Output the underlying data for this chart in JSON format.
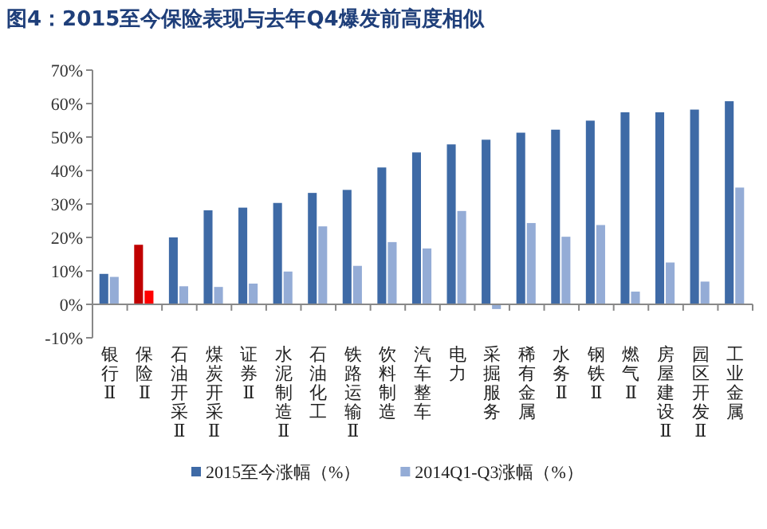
{
  "chart_data": {
    "type": "bar",
    "title": "图4：2015至今保险表现与去年Q4爆发前高度相似",
    "categories": [
      "银行Ⅱ",
      "保险Ⅱ",
      "石油开采Ⅱ",
      "煤炭开采Ⅱ",
      "证券Ⅱ",
      "水泥制造Ⅱ",
      "石油化工",
      "铁路运输Ⅱ",
      "饮料制造",
      "汽车整车",
      "电力",
      "采掘服务",
      "稀有金属",
      "水务Ⅱ",
      "钢铁Ⅱ",
      "燃气Ⅱ",
      "房屋建设Ⅱ",
      "园区开发Ⅱ",
      "工业金属"
    ],
    "series": [
      {
        "name": "2015至今涨幅（%）",
        "color": "#3e6aa6",
        "colors": [
          "#3e6aa6",
          "#c00000",
          "#3e6aa6",
          "#3e6aa6",
          "#3e6aa6",
          "#3e6aa6",
          "#3e6aa6",
          "#3e6aa6",
          "#3e6aa6",
          "#3e6aa6",
          "#3e6aa6",
          "#3e6aa6",
          "#3e6aa6",
          "#3e6aa6",
          "#3e6aa6",
          "#3e6aa6",
          "#3e6aa6",
          "#3e6aa6",
          "#3e6aa6"
        ],
        "values": [
          9.1,
          17.8,
          20.0,
          28.1,
          28.9,
          30.3,
          33.3,
          34.2,
          40.9,
          45.4,
          47.8,
          49.2,
          51.3,
          52.2,
          54.9,
          57.4,
          57.4,
          58.2,
          60.7
        ]
      },
      {
        "name": "2014Q1-Q3涨幅（%）",
        "color": "#94acd6",
        "colors": [
          "#94acd6",
          "#ff0000",
          "#94acd6",
          "#94acd6",
          "#94acd6",
          "#94acd6",
          "#94acd6",
          "#94acd6",
          "#94acd6",
          "#94acd6",
          "#94acd6",
          "#94acd6",
          "#94acd6",
          "#94acd6",
          "#94acd6",
          "#94acd6",
          "#94acd6",
          "#94acd6",
          "#94acd6"
        ],
        "values": [
          8.2,
          4.1,
          5.4,
          5.2,
          6.2,
          9.8,
          23.3,
          11.5,
          18.6,
          16.7,
          27.9,
          -1.4,
          24.3,
          20.2,
          23.7,
          3.8,
          12.5,
          6.8,
          34.9
        ]
      }
    ],
    "ylim": [
      -10,
      70
    ],
    "yticks": [
      {
        "value": -10,
        "label": "-10%"
      },
      {
        "value": 0,
        "label": "0%"
      },
      {
        "value": 10,
        "label": "10%"
      },
      {
        "value": 20,
        "label": "20%"
      },
      {
        "value": 30,
        "label": "30%"
      },
      {
        "value": 40,
        "label": "40%"
      },
      {
        "value": 50,
        "label": "50%"
      },
      {
        "value": 60,
        "label": "60%"
      },
      {
        "value": 70,
        "label": "70%"
      }
    ],
    "grid": false,
    "legend": "bottom"
  }
}
